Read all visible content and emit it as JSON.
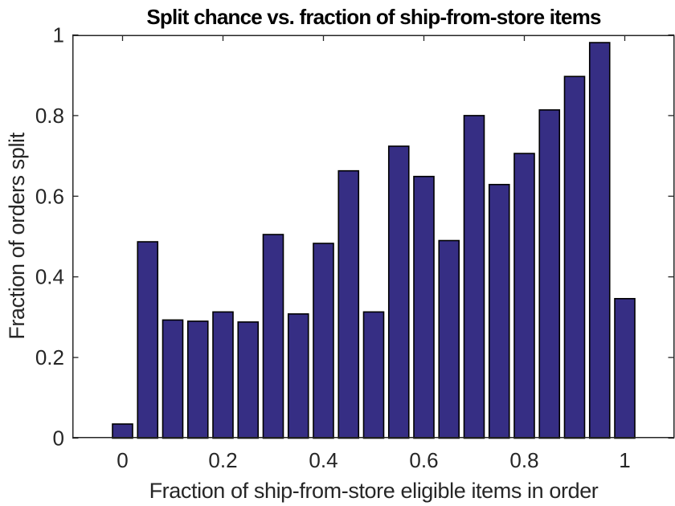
{
  "chart_data": {
    "type": "bar",
    "title": "Split chance vs. fraction of ship-from-store items",
    "xlabel": "Fraction of ship-from-store eligible items in order",
    "ylabel": "Fraction of orders split",
    "categories": [
      0,
      0.05,
      0.1,
      0.15,
      0.2,
      0.25,
      0.3,
      0.35,
      0.4,
      0.45,
      0.5,
      0.55,
      0.6,
      0.65,
      0.7,
      0.75,
      0.8,
      0.85,
      0.9,
      0.95,
      1
    ],
    "values": [
      0.035,
      0.487,
      0.293,
      0.29,
      0.313,
      0.288,
      0.505,
      0.308,
      0.483,
      0.663,
      0.313,
      0.724,
      0.649,
      0.49,
      0.8,
      0.629,
      0.706,
      0.814,
      0.897,
      0.981,
      0.346
    ],
    "bar_width": 0.04,
    "xlim": [
      -0.1,
      1.1
    ],
    "ylim": [
      0,
      1
    ],
    "x_ticks": [
      0,
      0.2,
      0.4,
      0.6,
      0.8,
      1
    ],
    "x_tick_labels": [
      "0",
      "0.2",
      "0.4",
      "0.6",
      "0.8",
      "1"
    ],
    "y_ticks": [
      0,
      0.2,
      0.4,
      0.6,
      0.8,
      1
    ],
    "y_tick_labels": [
      "0",
      "0.2",
      "0.4",
      "0.6",
      "0.8",
      "1"
    ],
    "grid": false,
    "legend": null,
    "box": "on",
    "tick_direction": "in",
    "colors": {
      "bar_fill": "#362E84",
      "bar_edge": "#000000",
      "axis": "#262626",
      "tick_label": "#262626",
      "title": "#000000",
      "background": "#FFFFFF"
    }
  }
}
